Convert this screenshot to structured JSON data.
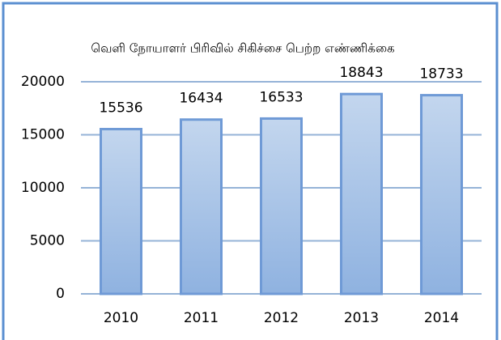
{
  "chart_data": {
    "type": "bar",
    "title": "வெளி நோயாளர் பிரிவில் சிகிச்சை பெற்ற எண்ணிக்கை",
    "categories": [
      "2010",
      "2011",
      "2012",
      "2013",
      "2014"
    ],
    "values": [
      15536,
      16434,
      16533,
      18843,
      18733
    ],
    "color": "#9dbde6",
    "ylim": [
      0,
      20000
    ],
    "yticks": [
      0,
      5000,
      10000,
      15000,
      20000
    ],
    "grid": true
  }
}
